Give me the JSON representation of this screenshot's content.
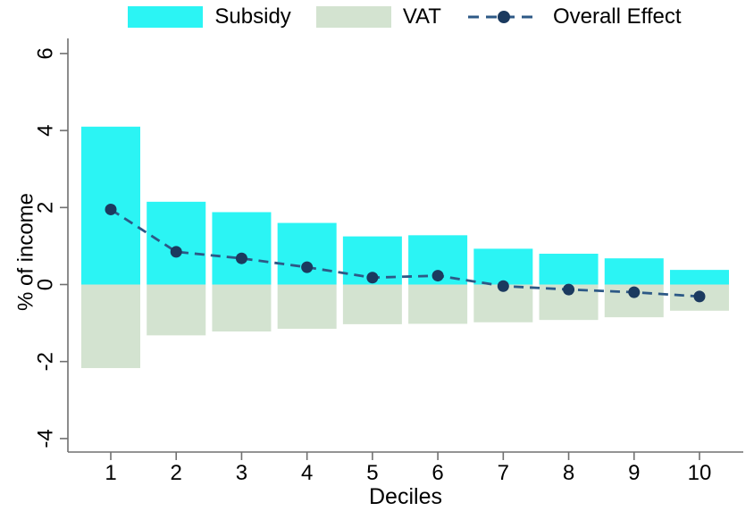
{
  "legend": {
    "subsidy": "Subsidy",
    "vat": "VAT",
    "overall": "Overall Effect"
  },
  "chart_data": {
    "type": "bar",
    "title": "",
    "xlabel": "Deciles",
    "ylabel": "% of income",
    "categories": [
      "1",
      "2",
      "3",
      "4",
      "5",
      "6",
      "7",
      "8",
      "9",
      "10"
    ],
    "yticks": [
      6,
      4,
      2,
      0,
      -2,
      -4
    ],
    "ylim": [
      -4.35,
      6.4
    ],
    "grid": false,
    "legend_position": "top",
    "series": [
      {
        "name": "Subsidy",
        "type": "bar",
        "color": "#2bf4f4",
        "values": [
          4.1,
          2.15,
          1.88,
          1.6,
          1.25,
          1.28,
          0.93,
          0.8,
          0.68,
          0.38
        ]
      },
      {
        "name": "VAT",
        "type": "bar",
        "color": "#d3e3d0",
        "values": [
          -2.17,
          -1.32,
          -1.22,
          -1.15,
          -1.03,
          -1.02,
          -0.98,
          -0.92,
          -0.85,
          -0.68
        ]
      },
      {
        "name": "Overall Effect",
        "type": "line",
        "line_style": "dashed",
        "color": "#2d5986",
        "marker_color": "#1b3a5f",
        "values": [
          1.95,
          0.85,
          0.68,
          0.45,
          0.18,
          0.23,
          -0.04,
          -0.13,
          -0.2,
          -0.31
        ]
      }
    ],
    "axis_color": "#707070",
    "text_color": "#000000"
  }
}
